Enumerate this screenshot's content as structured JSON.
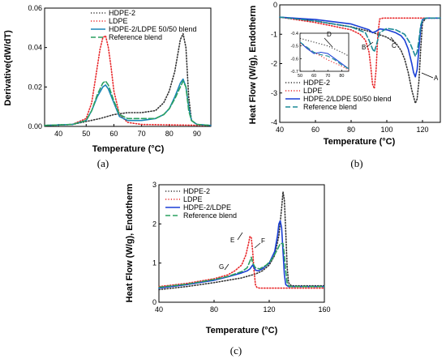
{
  "chart_data": [
    {
      "panel_label": "(a)",
      "type": "line",
      "xlabel": "Temperature (°C)",
      "ylabel": "Derivative(dW/dT)",
      "xlim": [
        35,
        95
      ],
      "ylim": [
        0,
        0.06
      ],
      "xticks": [
        "40",
        "50",
        "60",
        "70",
        "80",
        "90"
      ],
      "yticks": [
        "0.00",
        "0.02",
        "0.04",
        "0.06"
      ],
      "grid": false,
      "legend": "top-right",
      "series": [
        {
          "name": "HDPE-2",
          "color": "#333333",
          "dash": "dot",
          "x": [
            35,
            45,
            55,
            60,
            65,
            70,
            75,
            78,
            80,
            82,
            83,
            84,
            85,
            86,
            87,
            88,
            90,
            95
          ],
          "y": [
            0.0005,
            0.001,
            0.004,
            0.006,
            0.007,
            0.007,
            0.008,
            0.012,
            0.018,
            0.028,
            0.036,
            0.044,
            0.047,
            0.04,
            0.015,
            0.003,
            0.001,
            0.0005
          ]
        },
        {
          "name": "LDPE",
          "color": "#e8282b",
          "dash": "dot",
          "x": [
            35,
            45,
            50,
            52,
            54,
            55,
            56,
            57,
            58,
            59,
            60,
            62,
            65,
            70,
            80,
            95
          ],
          "y": [
            0.0005,
            0.001,
            0.004,
            0.012,
            0.03,
            0.039,
            0.045,
            0.046,
            0.04,
            0.03,
            0.018,
            0.006,
            0.002,
            0.001,
            0.0008,
            0.0005
          ]
        },
        {
          "name": "HDPE-2/LDPE 50/50 blend",
          "color": "#1a86b8",
          "dash": "solid",
          "x": [
            35,
            45,
            50,
            52,
            54,
            56,
            57,
            58,
            60,
            62,
            65,
            70,
            75,
            78,
            80,
            82,
            84,
            85,
            86,
            87,
            88,
            90,
            95
          ],
          "y": [
            0.0005,
            0.001,
            0.003,
            0.008,
            0.015,
            0.02,
            0.021,
            0.019,
            0.012,
            0.005,
            0.003,
            0.003,
            0.004,
            0.006,
            0.009,
            0.015,
            0.022,
            0.024,
            0.02,
            0.01,
            0.003,
            0.001,
            0.0005
          ]
        },
        {
          "name": "Reference blend",
          "color": "#2aa060",
          "dash": "dash",
          "x": [
            35,
            45,
            50,
            52,
            54,
            56,
            57,
            58,
            60,
            62,
            65,
            70,
            75,
            78,
            80,
            82,
            84,
            85,
            86,
            87,
            88,
            90,
            95
          ],
          "y": [
            0.0005,
            0.001,
            0.003,
            0.008,
            0.016,
            0.022,
            0.023,
            0.021,
            0.013,
            0.006,
            0.004,
            0.004,
            0.004,
            0.006,
            0.009,
            0.014,
            0.02,
            0.023,
            0.02,
            0.008,
            0.003,
            0.001,
            0.0005
          ]
        }
      ]
    },
    {
      "panel_label": "(b)",
      "type": "line",
      "xlabel": "Temperature (°C)",
      "ylabel": "Heat Flow (W/g), Endotherm",
      "xlim": [
        40,
        130
      ],
      "ylim": [
        -4,
        0
      ],
      "xticks": [
        "40",
        "60",
        "80",
        "100",
        "120"
      ],
      "yticks": [
        "0",
        "-1",
        "-2",
        "-3",
        "-4"
      ],
      "grid": false,
      "legend": "bottom-left",
      "annotations": [
        "A",
        "B",
        "C",
        "D"
      ],
      "series": [
        {
          "name": "HDPE-2",
          "color": "#333333",
          "dash": "dot",
          "x": [
            40,
            60,
            80,
            90,
            100,
            105,
            108,
            110,
            112,
            114,
            116,
            117,
            118,
            119,
            120,
            122,
            130
          ],
          "y": [
            -0.42,
            -0.55,
            -0.75,
            -0.9,
            -1.1,
            -1.3,
            -1.55,
            -1.85,
            -2.3,
            -2.9,
            -3.35,
            -3.2,
            -2.6,
            -1.5,
            -0.6,
            -0.45,
            -0.45
          ]
        },
        {
          "name": "LDPE",
          "color": "#e8282b",
          "dash": "dot",
          "x": [
            40,
            60,
            80,
            85,
            88,
            90,
            91,
            92,
            93,
            94,
            95,
            96,
            98,
            130
          ],
          "y": [
            -0.42,
            -0.6,
            -0.85,
            -1.0,
            -1.2,
            -1.6,
            -2.1,
            -2.7,
            -2.85,
            -2.2,
            -1.0,
            -0.48,
            -0.45,
            -0.45
          ]
        },
        {
          "name": "HDPE-2/LDPE 50/50 blend",
          "color": "#1a3fd6",
          "dash": "solid",
          "x": [
            40,
            60,
            80,
            90,
            92,
            94,
            96,
            100,
            105,
            108,
            110,
            112,
            114,
            115,
            116,
            117,
            118,
            119,
            120,
            122,
            130
          ],
          "y": [
            -0.42,
            -0.5,
            -0.65,
            -0.85,
            -0.95,
            -0.9,
            -0.82,
            -0.85,
            -0.95,
            -1.05,
            -1.2,
            -1.5,
            -2.0,
            -2.3,
            -2.45,
            -2.2,
            -1.5,
            -0.8,
            -0.5,
            -0.45,
            -0.45
          ]
        },
        {
          "name": "Reference blend",
          "color": "#1a8a96",
          "dash": "dash",
          "x": [
            40,
            60,
            80,
            88,
            90,
            92,
            93,
            94,
            96,
            100,
            105,
            110,
            113,
            115,
            116,
            117,
            118,
            119,
            120,
            122,
            130
          ],
          "y": [
            -0.42,
            -0.55,
            -0.75,
            -0.95,
            -1.2,
            -1.5,
            -1.6,
            -1.4,
            -0.95,
            -0.8,
            -0.85,
            -1.0,
            -1.3,
            -1.6,
            -1.75,
            -1.6,
            -1.2,
            -0.7,
            -0.5,
            -0.45,
            -0.45
          ]
        }
      ],
      "inset": {
        "xlim": [
          50,
          85
        ],
        "ylim": [
          -0.7,
          -0.4
        ],
        "xticks": [
          "50",
          "60",
          "70",
          "80"
        ],
        "yticks": [
          "-0.4",
          "-0.5",
          "-0.6",
          "-0.7"
        ],
        "series": [
          {
            "name": "HDPE-2",
            "x": [
              50,
              60,
              70,
              80,
              85
            ],
            "y": [
              -0.44,
              -0.47,
              -0.5,
              -0.55,
              -0.58
            ]
          },
          {
            "name": "LDPE",
            "x": [
              50,
              60,
              70,
              80,
              85
            ],
            "y": [
              -0.48,
              -0.55,
              -0.61,
              -0.66,
              -0.69
            ]
          },
          {
            "name": "HDPE-2/LDPE 50/50 blend",
            "x": [
              50,
              55,
              60,
              65,
              70,
              75,
              80,
              85
            ],
            "y": [
              -0.47,
              -0.52,
              -0.56,
              -0.55,
              -0.56,
              -0.6,
              -0.64,
              -0.68
            ]
          },
          {
            "name": "Reference blend",
            "x": [
              50,
              55,
              60,
              65,
              70,
              75,
              80,
              85
            ],
            "y": [
              -0.47,
              -0.51,
              -0.55,
              -0.57,
              -0.58,
              -0.61,
              -0.65,
              -0.68
            ]
          }
        ]
      }
    },
    {
      "panel_label": "(c)",
      "type": "line",
      "xlabel": "Temperature (°C)",
      "ylabel": "Heat Flow (W/g), Endotherm",
      "xlim": [
        40,
        160
      ],
      "ylim": [
        0,
        3
      ],
      "xticks": [
        "40",
        "80",
        "120",
        "160"
      ],
      "yticks": [
        "0",
        "1",
        "2",
        "3"
      ],
      "grid": false,
      "legend": "top-left",
      "annotations": [
        "E",
        "F",
        "G"
      ],
      "series": [
        {
          "name": "HDPE-2",
          "color": "#333333",
          "dash": "dot",
          "x": [
            40,
            60,
            80,
            100,
            110,
            115,
            120,
            124,
            127,
            129,
            130,
            131,
            132,
            133,
            134,
            136,
            140,
            160
          ],
          "y": [
            0.32,
            0.4,
            0.5,
            0.62,
            0.72,
            0.8,
            0.95,
            1.2,
            1.7,
            2.4,
            2.82,
            2.6,
            1.8,
            0.9,
            0.5,
            0.42,
            0.42,
            0.42
          ]
        },
        {
          "name": "LDPE",
          "color": "#e8282b",
          "dash": "dot",
          "x": [
            40,
            60,
            80,
            90,
            95,
            100,
            103,
            105,
            106,
            107,
            108,
            109,
            110,
            111,
            113,
            160
          ],
          "y": [
            0.4,
            0.48,
            0.6,
            0.7,
            0.8,
            0.95,
            1.2,
            1.5,
            1.68,
            1.65,
            1.3,
            0.8,
            0.45,
            0.38,
            0.36,
            0.36
          ]
        },
        {
          "name": "HDPE-2/LDPE",
          "color": "#1a3fd6",
          "dash": "solid",
          "x": [
            40,
            60,
            80,
            90,
            100,
            104,
            106,
            108,
            110,
            112,
            115,
            120,
            124,
            126,
            127,
            128,
            129,
            130,
            131,
            132,
            134,
            140,
            160
          ],
          "y": [
            0.36,
            0.45,
            0.56,
            0.65,
            0.75,
            0.8,
            0.85,
            0.95,
            0.82,
            0.8,
            0.85,
            1.0,
            1.3,
            1.7,
            2.0,
            2.08,
            1.9,
            1.3,
            0.7,
            0.45,
            0.4,
            0.4,
            0.4
          ]
        },
        {
          "name": "Reference blend",
          "color": "#2aa060",
          "dash": "dash",
          "x": [
            40,
            60,
            80,
            90,
            100,
            104,
            106,
            107,
            108,
            110,
            113,
            118,
            122,
            126,
            128,
            130,
            131,
            132,
            133,
            134,
            136,
            140,
            160
          ],
          "y": [
            0.38,
            0.46,
            0.58,
            0.66,
            0.78,
            0.88,
            1.05,
            1.15,
            1.0,
            0.88,
            0.85,
            0.95,
            1.1,
            1.35,
            1.5,
            1.5,
            1.2,
            0.8,
            0.5,
            0.42,
            0.4,
            0.4,
            0.4
          ]
        }
      ]
    }
  ]
}
